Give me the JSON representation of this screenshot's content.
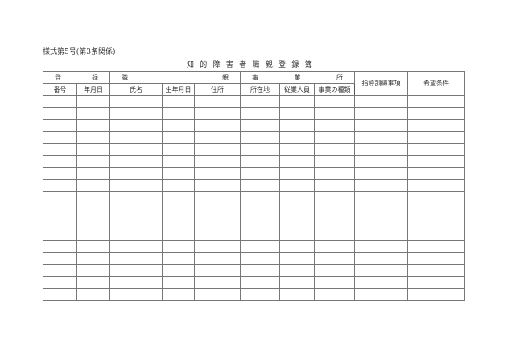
{
  "form_label": "様式第5号(第3条関係)",
  "title": "知的障害者職親登録簿",
  "header": {
    "group1": [
      "登",
      "録"
    ],
    "group2": [
      "職",
      "親"
    ],
    "group3": [
      "事",
      "業",
      "所"
    ],
    "guidance": "指導訓練事項",
    "wishes": "希望条件",
    "columns": [
      "番号",
      "年月日",
      "氏名",
      "生年月日",
      "住所",
      "所在地",
      "従業人員",
      "事業の種類"
    ]
  }
}
